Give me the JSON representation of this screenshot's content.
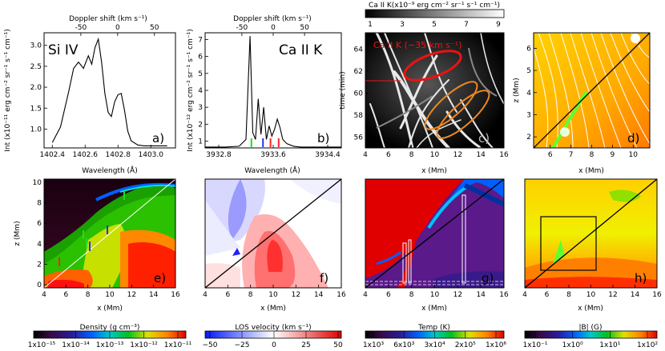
{
  "chart_data": [
    {
      "id": "a",
      "type": "line",
      "panel_label": "a)",
      "title": "Si IV",
      "top_axis_label": "Doppler shift (km s⁻¹)",
      "top_ticks": [
        "-50",
        "0",
        "50"
      ],
      "xlabel": "Wavelength (Å)",
      "ylabel": "Int (x10⁻¹¹ erg cm⁻² sr⁻¹ s⁻¹ cm⁻¹)",
      "xlim": [
        1402.35,
        1403.15
      ],
      "ylim": [
        0.55,
        3.3
      ],
      "x_ticks": [
        "1402.4",
        "1402.6",
        "1402.8",
        "1403.0"
      ],
      "y_ticks": [
        "1.0",
        "1.5",
        "2.0",
        "2.5",
        "3.0"
      ],
      "x": [
        1402.4,
        1402.45,
        1402.5,
        1402.53,
        1402.56,
        1402.59,
        1402.62,
        1402.64,
        1402.66,
        1402.68,
        1402.7,
        1402.72,
        1402.74,
        1402.76,
        1402.78,
        1402.8,
        1402.82,
        1402.84,
        1402.86,
        1402.88,
        1402.92,
        1402.96,
        1403.0,
        1403.05,
        1403.1
      ],
      "y": [
        0.68,
        1.05,
        1.9,
        2.45,
        2.6,
        2.45,
        2.75,
        2.55,
        2.95,
        3.15,
        2.6,
        1.85,
        1.4,
        1.3,
        1.65,
        1.82,
        1.85,
        1.45,
        0.95,
        0.72,
        0.62,
        0.6,
        0.6,
        0.6,
        0.6
      ]
    },
    {
      "id": "b",
      "type": "line",
      "panel_label": "b)",
      "title": "Ca II K",
      "top_axis_label": "Doppler shift (km s⁻¹)",
      "top_ticks": [
        "-50",
        "0",
        "50"
      ],
      "xlabel": "Wavelength (Å)",
      "ylabel": "Int (x10⁻¹² erg cm⁻² sr⁻¹ s⁻¹ cm⁻¹)",
      "xlim": [
        3932.6,
        3934.6
      ],
      "ylim": [
        0.6,
        7.4
      ],
      "x_ticks": [
        "3932.8",
        "3933.6",
        "3934.4"
      ],
      "y_ticks": [
        "1",
        "2",
        "3",
        "4",
        "5",
        "6",
        "7"
      ],
      "x": [
        3932.6,
        3932.9,
        3933.1,
        3933.2,
        3933.26,
        3933.3,
        3933.34,
        3933.38,
        3933.42,
        3933.46,
        3933.5,
        3933.54,
        3933.58,
        3933.62,
        3933.66,
        3933.7,
        3933.74,
        3933.8,
        3933.9,
        3934.0,
        3934.2,
        3934.6
      ],
      "y": [
        0.65,
        0.65,
        0.7,
        1.1,
        7.2,
        1.5,
        1.1,
        3.5,
        1.4,
        3.0,
        1.1,
        1.9,
        1.3,
        1.7,
        2.3,
        1.8,
        1.1,
        0.85,
        0.7,
        0.65,
        0.65,
        0.65
      ],
      "markers": [
        {
          "x": 3933.28,
          "color": "#22dd22"
        },
        {
          "x": 3933.45,
          "color": "#2233ff"
        },
        {
          "x": 3933.56,
          "color": "#ff2222"
        },
        {
          "x": 3933.68,
          "color": "#ff2222"
        }
      ]
    },
    {
      "id": "c",
      "type": "heatmap",
      "panel_label": "c)",
      "colorbar_title": "Ca II K(x10⁻⁹ erg cm⁻² sr⁻¹ s⁻¹ cm⁻¹)",
      "colorbar_ticks": [
        "1",
        "3",
        "5",
        "7",
        "9"
      ],
      "annotation": "Ca II K (−35 km s⁻¹)",
      "xlabel": "x (Mm)",
      "ylabel": "time (min)",
      "xlim": [
        4,
        16
      ],
      "ylim": [
        55,
        65.5
      ],
      "x_ticks": [
        "4",
        "6",
        "8",
        "10",
        "12",
        "14",
        "16"
      ],
      "y_ticks": [
        "56",
        "58",
        "60",
        "62",
        "64"
      ]
    },
    {
      "id": "d",
      "type": "heatmap",
      "panel_label": "d)",
      "xlabel": "x (Mm)",
      "ylabel": "z (Mm)",
      "xlim": [
        5.2,
        10.8
      ],
      "ylim": [
        1.5,
        6.7
      ],
      "x_ticks": [
        "6",
        "7",
        "8",
        "9",
        "10"
      ],
      "y_ticks": [
        "2",
        "3",
        "4",
        "5",
        "6"
      ]
    },
    {
      "id": "e",
      "type": "heatmap",
      "panel_label": "e)",
      "xlabel": "x (Mm)",
      "ylabel": "z (Mm)",
      "xlim": [
        4,
        16
      ],
      "ylim": [
        -0.3,
        10.3
      ],
      "x_ticks": [
        "4",
        "6",
        "8",
        "10",
        "12",
        "14",
        "16"
      ],
      "y_ticks": [
        "0",
        "2",
        "4",
        "6",
        "8",
        "10"
      ],
      "colorbar_title": "Density (g cm⁻³)",
      "colorbar_ticks": [
        "1x10⁻¹⁵",
        "1x10⁻¹⁴",
        "1x10⁻¹³",
        "1x10⁻¹²",
        "1x10⁻¹¹"
      ]
    },
    {
      "id": "f",
      "type": "heatmap",
      "panel_label": "f)",
      "xlabel": "x (Mm)",
      "xlim": [
        4,
        16
      ],
      "x_ticks": [
        "4",
        "6",
        "8",
        "10",
        "12",
        "14",
        "16"
      ],
      "colorbar_title": "LOS velocity (km s⁻¹)",
      "colorbar_ticks": [
        "−50",
        "−25",
        "0",
        "25",
        "50"
      ]
    },
    {
      "id": "g",
      "type": "heatmap",
      "panel_label": "g)",
      "xlabel": "x (Mm)",
      "xlim": [
        4,
        16
      ],
      "x_ticks": [
        "4",
        "6",
        "8",
        "10",
        "12",
        "14",
        "16"
      ],
      "colorbar_title": "Temp (K)",
      "colorbar_ticks": [
        "1x10³",
        "6x10³",
        "3x10⁴",
        "2x10⁵",
        "1x10⁶"
      ]
    },
    {
      "id": "h",
      "type": "heatmap",
      "panel_label": "h)",
      "xlabel": "x (Mm)",
      "xlim": [
        4,
        16
      ],
      "x_ticks": [
        "4",
        "6",
        "8",
        "10",
        "12",
        "14",
        "16"
      ],
      "colorbar_title": "|B| (G)",
      "colorbar_ticks": [
        "1x10⁻¹",
        "1x10⁰",
        "1x10¹",
        "1x10²"
      ]
    }
  ]
}
